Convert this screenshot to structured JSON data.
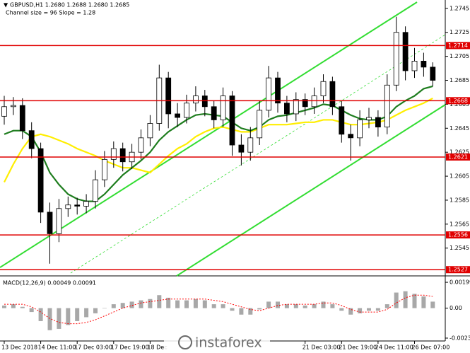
{
  "chart_data": [
    {
      "type": "candlestick",
      "title": "GBPUSD,H1  1.2680 1.2688 1.2680 1.2685",
      "subtitle": "Channel size = 96 Slope = 1.28",
      "open": [
        1.2655,
        1.2663,
        1.2664,
        1.2643,
        1.2628,
        1.2575,
        1.2557,
        1.2578,
        1.2581,
        1.258,
        1.2584,
        1.2602,
        1.2619,
        1.2628,
        1.2617,
        1.2625,
        1.2637,
        1.2649,
        1.2687,
        1.2657,
        1.2654,
        1.2666,
        1.2672,
        1.2663,
        1.2652,
        1.2672,
        1.2631,
        1.2625,
        1.2637,
        1.266,
        1.2687,
        1.2666,
        1.2657,
        1.2669,
        1.2663,
        1.2672,
        1.2684,
        1.2663,
        1.264,
        1.2637,
        1.2652,
        1.2654,
        1.2646,
        1.2681,
        1.2725,
        1.2693,
        1.2701,
        1.2696
      ],
      "high": [
        1.2672,
        1.2671,
        1.267,
        1.265,
        1.2633,
        1.2583,
        1.2586,
        1.2588,
        1.2587,
        1.259,
        1.261,
        1.2626,
        1.2634,
        1.2633,
        1.2632,
        1.2644,
        1.2656,
        1.2698,
        1.2692,
        1.2666,
        1.2673,
        1.268,
        1.2677,
        1.2668,
        1.2679,
        1.2676,
        1.264,
        1.2646,
        1.2668,
        1.2697,
        1.2692,
        1.2672,
        1.2675,
        1.2674,
        1.2679,
        1.269,
        1.2688,
        1.2668,
        1.2648,
        1.266,
        1.2662,
        1.266,
        1.269,
        1.2738,
        1.273,
        1.2712,
        1.2708,
        1.27
      ],
      "low": [
        1.2648,
        1.2656,
        1.2636,
        1.262,
        1.2566,
        1.2532,
        1.255,
        1.2571,
        1.2573,
        1.2574,
        1.2578,
        1.2596,
        1.2612,
        1.2609,
        1.2611,
        1.2619,
        1.263,
        1.2643,
        1.2645,
        1.2646,
        1.2649,
        1.2659,
        1.2655,
        1.2645,
        1.2646,
        1.2622,
        1.2614,
        1.2618,
        1.2631,
        1.2654,
        1.2658,
        1.265,
        1.2651,
        1.2656,
        1.2657,
        1.2666,
        1.2656,
        1.2633,
        1.2618,
        1.263,
        1.2645,
        1.2638,
        1.264,
        1.2676,
        1.2685,
        1.2687,
        1.2688,
        1.268
      ],
      "close": [
        1.2663,
        1.2664,
        1.2643,
        1.2628,
        1.2575,
        1.2557,
        1.2578,
        1.2581,
        1.258,
        1.2584,
        1.2602,
        1.2619,
        1.2628,
        1.2617,
        1.2625,
        1.2637,
        1.2649,
        1.2687,
        1.2657,
        1.2654,
        1.2666,
        1.2672,
        1.2663,
        1.2652,
        1.2672,
        1.2631,
        1.2625,
        1.2637,
        1.266,
        1.2687,
        1.2666,
        1.2657,
        1.2669,
        1.2663,
        1.2672,
        1.2684,
        1.2663,
        1.264,
        1.2637,
        1.2652,
        1.2654,
        1.2646,
        1.2681,
        1.2725,
        1.2693,
        1.2701,
        1.2696,
        1.2685
      ],
      "series": [
        {
          "color": "#ffee00",
          "values": [
            1.26,
            1.2615,
            1.2628,
            1.2638,
            1.264,
            1.2638,
            1.2635,
            1.2632,
            1.2628,
            1.2625,
            1.2622,
            1.2618,
            1.2615,
            1.2612,
            1.2612,
            1.261,
            1.2608,
            1.2615,
            1.2622,
            1.2628,
            1.2632,
            1.2638,
            1.2642,
            1.2645,
            1.2646,
            1.2644,
            1.2642,
            1.2642,
            1.2645,
            1.2648,
            1.2648,
            1.2648,
            1.2649,
            1.265,
            1.265,
            1.2652,
            1.2652,
            1.265,
            1.2648,
            1.2648,
            1.2649,
            1.265,
            1.2652,
            1.2656,
            1.266,
            1.2663,
            1.2666,
            1.267
          ]
        },
        {
          "color": "#1e7d1e",
          "values": [
            1.264,
            1.2643,
            1.2643,
            1.2638,
            1.2625,
            1.2608,
            1.2598,
            1.259,
            1.2586,
            1.2584,
            1.2584,
            1.259,
            1.2598,
            1.2606,
            1.2612,
            1.2618,
            1.2625,
            1.2635,
            1.2642,
            1.2647,
            1.2652,
            1.2656,
            1.2657,
            1.2656,
            1.2655,
            1.265,
            1.2645,
            1.2643,
            1.2646,
            1.2652,
            1.2655,
            1.2656,
            1.2658,
            1.266,
            1.2662,
            1.2665,
            1.2664,
            1.266,
            1.2656,
            1.2653,
            1.2652,
            1.2652,
            1.2655,
            1.2663,
            1.2668,
            1.2672,
            1.2678,
            1.268
          ]
        }
      ],
      "levels": [
        1.2714,
        1.2668,
        1.2621,
        1.2556,
        1.2527
      ],
      "level_color": "#e00000",
      "ylim": [
        1.2523,
        1.2752
      ],
      "yticks": [
        1.2745,
        1.2725,
        1.2705,
        1.2685,
        1.2665,
        1.2645,
        1.2625,
        1.2605,
        1.2585,
        1.2565,
        1.2545
      ],
      "xticks": [
        {
          "value": 0,
          "label": "13 Dec 2018"
        },
        {
          "value": 4,
          "label": "14 Dec 11:00"
        },
        {
          "value": 8,
          "label": "17 Dec 03:00"
        },
        {
          "value": 12,
          "label": "17 Dec 19:00"
        },
        {
          "value": 16,
          "label": "18 Dec"
        },
        {
          "value": 33,
          "label": "21 Dec 03:00"
        },
        {
          "value": 37,
          "label": "21 Dec 19:00"
        },
        {
          "value": 41,
          "label": "24 Dec 11:00"
        },
        {
          "value": 45,
          "label": "26 Dec 07:00"
        }
      ]
    },
    {
      "type": "macd",
      "title": "MACD(12,26,9) 0.00049 0.00091",
      "series": [
        {
          "color": "#a8a8a8",
          "values": [
            0.0002,
            0.0003,
            0.0001,
            -0.0003,
            -0.001,
            -0.0017,
            -0.0016,
            -0.0013,
            -0.001,
            -0.0007,
            -0.0004,
            0.0,
            0.0003,
            0.0004,
            0.0005,
            0.0006,
            0.0007,
            0.001,
            0.0008,
            0.0006,
            0.0006,
            0.0007,
            0.0006,
            0.0003,
            0.0003,
            -0.0002,
            -0.0005,
            -0.0005,
            -0.0001,
            0.0005,
            0.0005,
            0.0003,
            0.0003,
            0.0002,
            0.0003,
            0.0005,
            0.0003,
            -0.0002,
            -0.0005,
            -0.0004,
            -0.0002,
            -0.0002,
            0.0003,
            0.0012,
            0.0013,
            0.0011,
            0.0009,
            0.0005
          ]
        },
        {
          "color": "#ff0000",
          "values": [
            0.0003,
            0.0003,
            0.0003,
            0.0001,
            -0.0003,
            -0.0008,
            -0.0011,
            -0.0012,
            -0.0012,
            -0.0011,
            -0.0009,
            -0.0006,
            -0.0003,
            0.0,
            0.0002,
            0.0004,
            0.0005,
            0.0006,
            0.0007,
            0.0007,
            0.0007,
            0.0007,
            0.0007,
            0.0006,
            0.0005,
            0.0003,
            0.0001,
            -0.0001,
            -0.0002,
            0.0,
            0.0002,
            0.0003,
            0.0003,
            0.0003,
            0.0003,
            0.0004,
            0.0004,
            0.0002,
            -0.0001,
            -0.0003,
            -0.0003,
            -0.0003,
            -0.0001,
            0.0004,
            0.0008,
            0.001,
            0.001,
            0.0009
          ]
        }
      ],
      "ylim": [
        -0.00253,
        0.00232
      ],
      "yticks": [
        0.00199,
        {
          "value": 0,
          "label": "0.00"
        },
        -0.00231
      ]
    }
  ],
  "watermark": "instaforex"
}
